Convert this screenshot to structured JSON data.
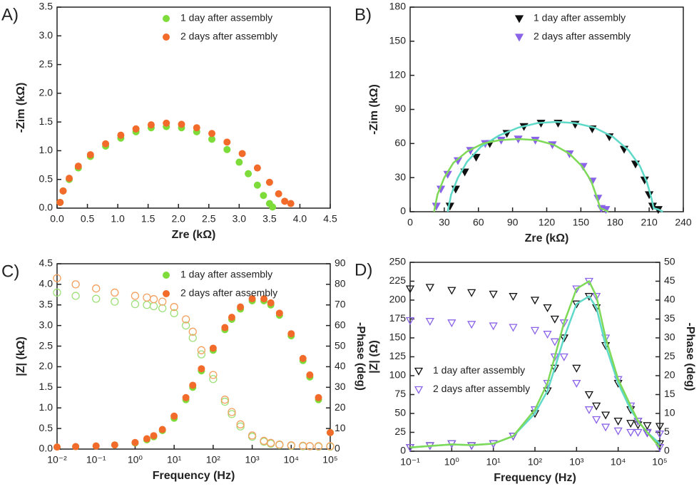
{
  "chart_data": [
    {
      "type": "scatter",
      "label": "A)",
      "xlabel": "Zre (kΩ)",
      "ylabel": "-Zim (kΩ)",
      "xlim": [
        0,
        4.5
      ],
      "ylim": [
        0,
        3.5
      ],
      "xticks": [
        {
          "value": 0,
          "label": "0.0"
        },
        0.5,
        {
          "value": 1,
          "label": "1.0"
        },
        1.5,
        {
          "value": 2,
          "label": "2.0"
        },
        2.5,
        {
          "value": 3,
          "label": "3.0"
        },
        3.5,
        {
          "value": 4,
          "label": "4.0"
        },
        4.5
      ],
      "yticks": [
        {
          "value": 0,
          "label": "0.0"
        },
        0.5,
        {
          "value": 1,
          "label": "1.0"
        },
        1.5,
        {
          "value": 2,
          "label": "2.0"
        },
        2.5,
        {
          "value": 3,
          "label": "3.0"
        },
        3.5
      ],
      "legend": "upper right",
      "series": [
        {
          "name": "1 day after assembly",
          "color": "#7ddc3a",
          "marker": "circle",
          "x": [
            0.05,
            0.1,
            0.2,
            0.35,
            0.55,
            0.8,
            1.05,
            1.3,
            1.55,
            1.8,
            2.05,
            2.3,
            2.55,
            2.8,
            3.0,
            3.15,
            3.3,
            3.4,
            3.5,
            3.55
          ],
          "values": [
            0.1,
            0.3,
            0.5,
            0.7,
            0.9,
            1.08,
            1.22,
            1.33,
            1.4,
            1.42,
            1.4,
            1.33,
            1.2,
            1.02,
            0.8,
            0.6,
            0.4,
            0.22,
            0.08,
            0.02
          ]
        },
        {
          "name": "2 days after assembly",
          "color": "#f26b2a",
          "marker": "circle",
          "x": [
            0.05,
            0.1,
            0.2,
            0.35,
            0.55,
            0.8,
            1.05,
            1.3,
            1.55,
            1.8,
            2.05,
            2.3,
            2.55,
            2.8,
            3.05,
            3.3,
            3.5,
            3.65,
            3.75,
            3.85
          ],
          "values": [
            0.1,
            0.3,
            0.52,
            0.73,
            0.93,
            1.12,
            1.27,
            1.38,
            1.45,
            1.48,
            1.46,
            1.4,
            1.3,
            1.15,
            0.95,
            0.7,
            0.45,
            0.25,
            0.12,
            0.08
          ]
        }
      ]
    },
    {
      "type": "scatter",
      "label": "B)",
      "xlabel": "Zre (kΩ)",
      "ylabel": "-Zim (kΩ)",
      "xlim": [
        0,
        240
      ],
      "ylim": [
        0,
        180
      ],
      "xticks": [
        0,
        30,
        60,
        90,
        120,
        150,
        180,
        210,
        240
      ],
      "yticks": [
        0,
        30,
        60,
        90,
        120,
        150,
        180
      ],
      "legend": "upper right",
      "series": [
        {
          "name": "1 day after assembly",
          "color": "#111111",
          "marker": "triangle-down",
          "x": [
            35,
            40,
            48,
            58,
            70,
            85,
            100,
            115,
            130,
            145,
            160,
            175,
            188,
            198,
            206,
            210,
            213,
            218
          ],
          "values": [
            5,
            20,
            35,
            48,
            60,
            69,
            75,
            78,
            78,
            77,
            73,
            66,
            55,
            42,
            28,
            15,
            5,
            2
          ]
        },
        {
          "name": "2 days after assembly",
          "color": "#8a63e8",
          "marker": "triangle-down",
          "x": [
            23,
            27,
            33,
            42,
            53,
            66,
            80,
            95,
            110,
            125,
            140,
            152,
            160,
            165,
            168,
            172
          ],
          "values": [
            5,
            20,
            33,
            45,
            54,
            60,
            63,
            64,
            63,
            59,
            51,
            40,
            27,
            12,
            3,
            2
          ]
        },
        {
          "color": "#5fd9c8",
          "marker": "line",
          "x": [
            33,
            36,
            42,
            50,
            62,
            78,
            95,
            112,
            128,
            145,
            162,
            178,
            192,
            202,
            208,
            212,
            214,
            218,
            222
          ],
          "values": [
            0,
            15,
            30,
            44,
            57,
            67,
            74,
            78,
            79,
            78,
            74,
            66,
            54,
            40,
            26,
            12,
            3,
            2,
            0
          ]
        },
        {
          "color": "#7ed957",
          "marker": "line",
          "x": [
            21,
            24,
            30,
            38,
            50,
            64,
            79,
            95,
            111,
            126,
            140,
            151,
            159,
            164,
            167,
            170,
            174
          ],
          "values": [
            0,
            15,
            30,
            43,
            53,
            60,
            63,
            64,
            63,
            59,
            51,
            40,
            27,
            13,
            3,
            2,
            0
          ]
        }
      ]
    },
    {
      "type": "scatter",
      "label": "C)",
      "xlabel": "Frequency (Hz)",
      "ylabel": "|Z| (kΩ)",
      "y2label": "-Phase (deg)",
      "xscale": "log",
      "xlim": [
        0.01,
        100000
      ],
      "ylim": [
        0,
        4.5
      ],
      "y2lim": [
        0,
        90
      ],
      "xticks": [
        {
          "value": 0.01,
          "label": "10⁻²"
        },
        {
          "value": 0.1,
          "label": "10⁻¹"
        },
        {
          "value": 1,
          "label": "10⁰"
        },
        {
          "value": 10,
          "label": "10¹"
        },
        {
          "value": 100,
          "label": "10²"
        },
        {
          "value": 1000,
          "label": "10³"
        },
        {
          "value": 10000,
          "label": "10⁴"
        },
        {
          "value": 100000,
          "label": "10⁵"
        }
      ],
      "yticks": [
        {
          "value": 0,
          "label": "0.0"
        },
        0.5,
        {
          "value": 1,
          "label": "1.0"
        },
        1.5,
        {
          "value": 2,
          "label": "2.0"
        },
        2.5,
        {
          "value": 3,
          "label": "3.0"
        },
        3.5,
        {
          "value": 4,
          "label": "4.0"
        },
        4.5
      ],
      "y2ticks": [
        0,
        10,
        20,
        30,
        40,
        50,
        60,
        70,
        80,
        90
      ],
      "legend": "upper right",
      "x": [
        0.01,
        0.03,
        0.1,
        0.3,
        1,
        2,
        3,
        5,
        10,
        20,
        30,
        50,
        100,
        200,
        300,
        500,
        1000,
        2000,
        3000,
        5000,
        10000,
        20000,
        30000,
        50000,
        100000
      ],
      "series": [
        {
          "name": "1 day after assembly",
          "color": "#7ddc3a",
          "marker": "circle",
          "axis": "y2",
          "values": [
            1,
            1.2,
            1.5,
            2,
            3,
            4.5,
            6,
            9,
            15,
            24,
            30,
            38,
            48,
            58,
            63,
            68,
            72,
            72,
            70,
            65,
            55,
            43,
            35,
            24,
            8
          ]
        },
        {
          "name": "2 days after assembly",
          "color": "#f26b2a",
          "marker": "circle",
          "axis": "y2",
          "values": [
            1,
            1.2,
            1.5,
            2,
            3.2,
            5,
            6.5,
            9.5,
            16,
            25,
            31,
            39,
            49,
            59,
            64,
            69,
            73,
            73,
            71,
            66,
            56,
            44,
            36,
            25,
            8
          ]
        },
        {
          "color": "#9ee07a",
          "marker": "circle-open",
          "values": [
            3.8,
            3.72,
            3.65,
            3.58,
            3.52,
            3.5,
            3.47,
            3.42,
            3.3,
            3.0,
            2.7,
            2.3,
            1.7,
            1.15,
            0.85,
            0.55,
            0.3,
            0.18,
            0.13,
            0.1,
            0.08,
            0.07,
            0.07,
            0.06,
            0.06
          ]
        },
        {
          "color": "#f4a060",
          "marker": "circle-open",
          "values": [
            4.15,
            4.0,
            3.9,
            3.8,
            3.72,
            3.68,
            3.64,
            3.58,
            3.45,
            3.15,
            2.85,
            2.4,
            1.8,
            1.2,
            0.9,
            0.6,
            0.33,
            0.2,
            0.15,
            0.11,
            0.09,
            0.08,
            0.07,
            0.07,
            0.07
          ]
        }
      ]
    },
    {
      "type": "scatter",
      "label": "D)",
      "xlabel": "Frequency (Hz)",
      "ylabel": "|Z| (Ω)",
      "y2label": "-Phase (deg)",
      "xscale": "log",
      "xlim": [
        0.1,
        100000
      ],
      "ylim": [
        0,
        250
      ],
      "y2lim": [
        0,
        50
      ],
      "xticks": [
        {
          "value": 0.1,
          "label": "10⁻¹"
        },
        {
          "value": 1,
          "label": "10⁰"
        },
        {
          "value": 10,
          "label": "10¹"
        },
        {
          "value": 100,
          "label": "10²"
        },
        {
          "value": 1000,
          "label": "10³"
        },
        {
          "value": 10000,
          "label": "10⁴"
        },
        {
          "value": 100000,
          "label": "10⁵"
        }
      ],
      "yticks": [
        0,
        25,
        50,
        75,
        100,
        125,
        150,
        175,
        200,
        225,
        250
      ],
      "y2ticks": [
        0,
        5,
        10,
        15,
        20,
        25,
        30,
        35,
        40,
        45,
        50
      ],
      "legend": "center left",
      "x": [
        0.1,
        0.3,
        1,
        3,
        10,
        30,
        100,
        200,
        300,
        500,
        1000,
        2000,
        3000,
        5000,
        10000,
        20000,
        30000,
        50000,
        100000
      ],
      "series": [
        {
          "name": "1 day after assembly",
          "color": "#111111",
          "marker": "triangle-down-open",
          "values": [
            215,
            217,
            213,
            210,
            208,
            205,
            200,
            190,
            175,
            150,
            110,
            75,
            60,
            48,
            40,
            37,
            35,
            34,
            33
          ]
        },
        {
          "name": "2 days after assembly",
          "color": "#8a63e8",
          "marker": "triangle-down-open",
          "values": [
            173,
            172,
            170,
            168,
            166,
            164,
            160,
            155,
            145,
            125,
            90,
            55,
            42,
            32,
            27,
            25,
            25,
            24,
            23
          ]
        },
        {
          "color": "#111111",
          "marker": "triangle-down-open",
          "axis": "y2",
          "values": [
            1,
            1.5,
            2,
            1.5,
            2,
            4,
            10,
            16,
            22,
            30,
            39,
            41,
            38,
            28,
            18,
            11,
            8,
            5,
            2
          ]
        },
        {
          "color": "#8a63e8",
          "marker": "triangle-down-open",
          "axis": "y2",
          "values": [
            1,
            1.5,
            2,
            1.5,
            2,
            4,
            11,
            18,
            25,
            34,
            43,
            45,
            41,
            30,
            19,
            12,
            8,
            5,
            1
          ]
        },
        {
          "color": "#5fd9c8",
          "marker": "line",
          "axis": "y2",
          "values": [
            1,
            1.4,
            1.8,
            1.6,
            2,
            4,
            10,
            16,
            22,
            30,
            39,
            41,
            38,
            28,
            18,
            11,
            8,
            5,
            2
          ]
        },
        {
          "color": "#7ed957",
          "marker": "line",
          "axis": "y2",
          "values": [
            1,
            1.4,
            1.8,
            1.6,
            2,
            4,
            11,
            18,
            25,
            34,
            43,
            45,
            41,
            30,
            19,
            12,
            8,
            5,
            1
          ]
        }
      ]
    }
  ]
}
